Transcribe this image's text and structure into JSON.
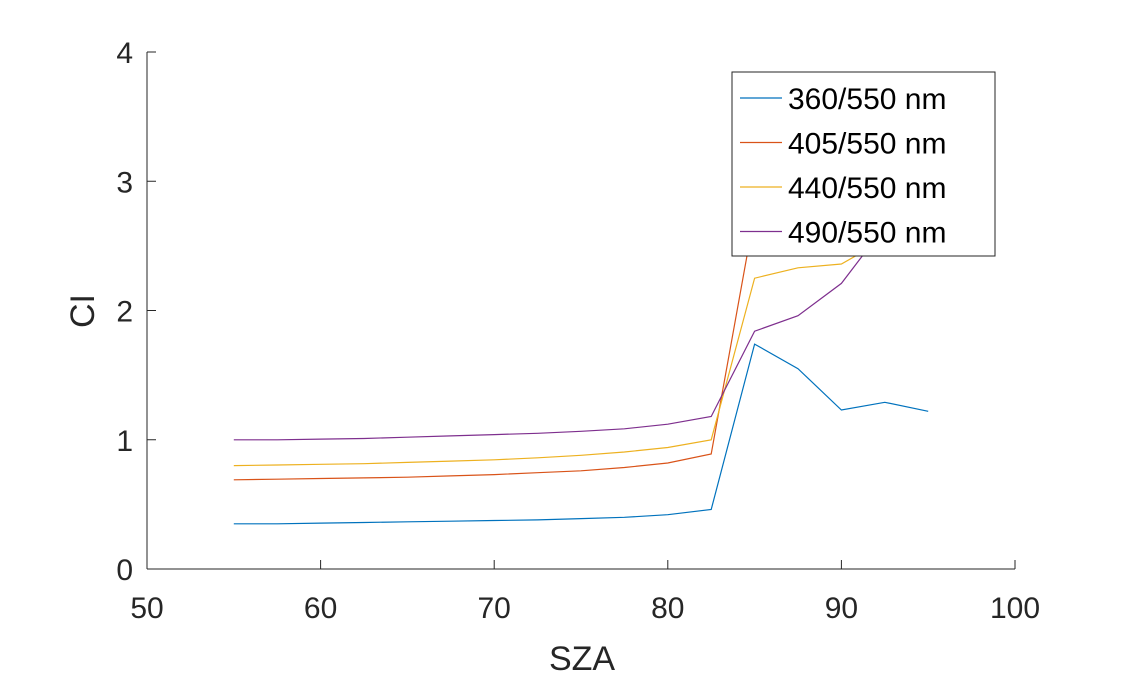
{
  "chart_data": {
    "type": "line",
    "title": "",
    "xlabel": "SZA",
    "ylabel": "CI",
    "xlim": [
      50,
      100
    ],
    "ylim": [
      0,
      4
    ],
    "xticks": [
      50,
      60,
      70,
      80,
      90,
      100
    ],
    "yticks": [
      0,
      1,
      2,
      3,
      4
    ],
    "xtick_labels": [
      "50",
      "60",
      "70",
      "80",
      "90",
      "100"
    ],
    "ytick_labels": [
      "0",
      "1",
      "2",
      "3",
      "4"
    ],
    "grid": false,
    "legend_position": "top-right",
    "series": [
      {
        "name": "360/550 nm",
        "color": "#0072BD",
        "x": [
          55,
          57.5,
          60,
          62.5,
          65,
          67.5,
          70,
          72.5,
          75,
          77.5,
          80,
          82.5,
          85,
          87.5,
          90,
          92.5,
          95
        ],
        "y": [
          0.35,
          0.35,
          0.355,
          0.36,
          0.365,
          0.37,
          0.375,
          0.38,
          0.39,
          0.4,
          0.42,
          0.46,
          1.74,
          1.55,
          1.23,
          1.29,
          1.22
        ]
      },
      {
        "name": "405/550 nm",
        "color": "#D95319",
        "x": [
          55,
          57.5,
          60,
          62.5,
          65,
          67.5,
          70,
          72.5,
          75,
          77.5,
          80,
          82.5,
          85,
          87.5,
          90,
          92.5,
          95
        ],
        "y": [
          0.69,
          0.695,
          0.7,
          0.705,
          0.71,
          0.72,
          0.73,
          0.745,
          0.76,
          0.785,
          0.82,
          0.89,
          2.75,
          2.9,
          3.0,
          3.05,
          3.1
        ]
      },
      {
        "name": "440/550 nm",
        "color": "#EDB120",
        "x": [
          55,
          57.5,
          60,
          62.5,
          65,
          67.5,
          70,
          72.5,
          75,
          77.5,
          80,
          82.5,
          85,
          87.5,
          90,
          92.5,
          95
        ],
        "y": [
          0.8,
          0.805,
          0.81,
          0.815,
          0.825,
          0.835,
          0.845,
          0.86,
          0.88,
          0.905,
          0.94,
          1.0,
          2.25,
          2.33,
          2.36,
          2.55,
          2.6
        ]
      },
      {
        "name": "490/550 nm",
        "color": "#7E2F8E",
        "x": [
          55,
          57.5,
          60,
          62.5,
          65,
          67.5,
          70,
          72.5,
          75,
          77.5,
          80,
          82.5,
          85,
          87.5,
          90,
          92.5,
          95
        ],
        "y": [
          1.0,
          1.0,
          1.005,
          1.01,
          1.02,
          1.03,
          1.04,
          1.05,
          1.065,
          1.085,
          1.12,
          1.18,
          1.84,
          1.96,
          2.21,
          2.65,
          2.8
        ]
      }
    ]
  }
}
